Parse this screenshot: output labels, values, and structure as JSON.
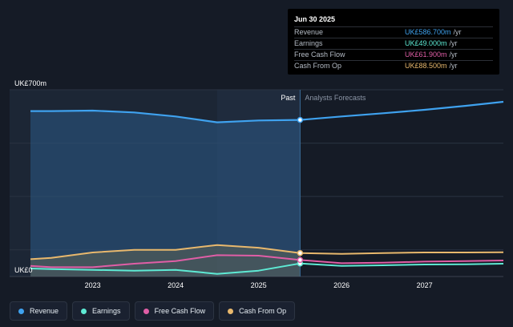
{
  "chart_data": {
    "type": "line",
    "y_top_label": "UK£700m",
    "y_bottom_label": "UK£0",
    "ylim": [
      0,
      700
    ],
    "xlim": [
      2022.25,
      2027.95
    ],
    "x_ticks": [
      "2023",
      "2024",
      "2025",
      "2026",
      "2027"
    ],
    "x_tick_values": [
      2023,
      2024,
      2025,
      2026,
      2027
    ],
    "divider_x": 2025.5,
    "past_label": "Past",
    "forecast_label": "Analysts Forecasts",
    "grid": true,
    "series": [
      {
        "name": "Revenue",
        "color": "#3fa2ef",
        "x": [
          2022.25,
          2022.5,
          2023.0,
          2023.5,
          2024.0,
          2024.5,
          2025.0,
          2025.5,
          2026.0,
          2026.5,
          2027.0,
          2027.5,
          2027.95
        ],
        "values": [
          620,
          620,
          622,
          615,
          600,
          578,
          585,
          587,
          600,
          612,
          625,
          640,
          655
        ]
      },
      {
        "name": "Earnings",
        "color": "#5eead4",
        "x": [
          2022.25,
          2022.5,
          2023.0,
          2023.5,
          2024.0,
          2024.5,
          2025.0,
          2025.5,
          2026.0,
          2026.5,
          2027.0,
          2027.5,
          2027.95
        ],
        "values": [
          30,
          28,
          25,
          22,
          25,
          10,
          22,
          49,
          40,
          42,
          45,
          46,
          48
        ]
      },
      {
        "name": "Free Cash Flow",
        "color": "#e05ea6",
        "x": [
          2022.25,
          2022.5,
          2023.0,
          2023.5,
          2024.0,
          2024.5,
          2025.0,
          2025.5,
          2026.0,
          2026.5,
          2027.0,
          2027.5,
          2027.95
        ],
        "values": [
          40,
          35,
          35,
          48,
          58,
          80,
          78,
          62,
          50,
          52,
          56,
          58,
          60
        ]
      },
      {
        "name": "Cash From Op",
        "color": "#e8b86d",
        "x": [
          2022.25,
          2022.5,
          2023.0,
          2023.5,
          2024.0,
          2024.5,
          2025.0,
          2025.5,
          2026.0,
          2026.5,
          2027.0,
          2027.5,
          2027.95
        ],
        "values": [
          65,
          70,
          90,
          100,
          100,
          118,
          108,
          88,
          85,
          88,
          90,
          90,
          91
        ]
      }
    ]
  },
  "tooltip": {
    "date": "Jun 30 2025",
    "rows": [
      {
        "label": "Revenue",
        "value": "UK£586.700m",
        "unit": "/yr",
        "color": "#3fa2ef"
      },
      {
        "label": "Earnings",
        "value": "UK£49.000m",
        "unit": "/yr",
        "color": "#5eead4"
      },
      {
        "label": "Free Cash Flow",
        "value": "UK£61.900m",
        "unit": "/yr",
        "color": "#e05ea6"
      },
      {
        "label": "Cash From Op",
        "value": "UK£88.500m",
        "unit": "/yr",
        "color": "#e8b86d"
      }
    ]
  },
  "legend": [
    {
      "label": "Revenue",
      "color": "#3fa2ef"
    },
    {
      "label": "Earnings",
      "color": "#5eead4"
    },
    {
      "label": "Free Cash Flow",
      "color": "#e05ea6"
    },
    {
      "label": "Cash From Op",
      "color": "#e8b86d"
    }
  ]
}
